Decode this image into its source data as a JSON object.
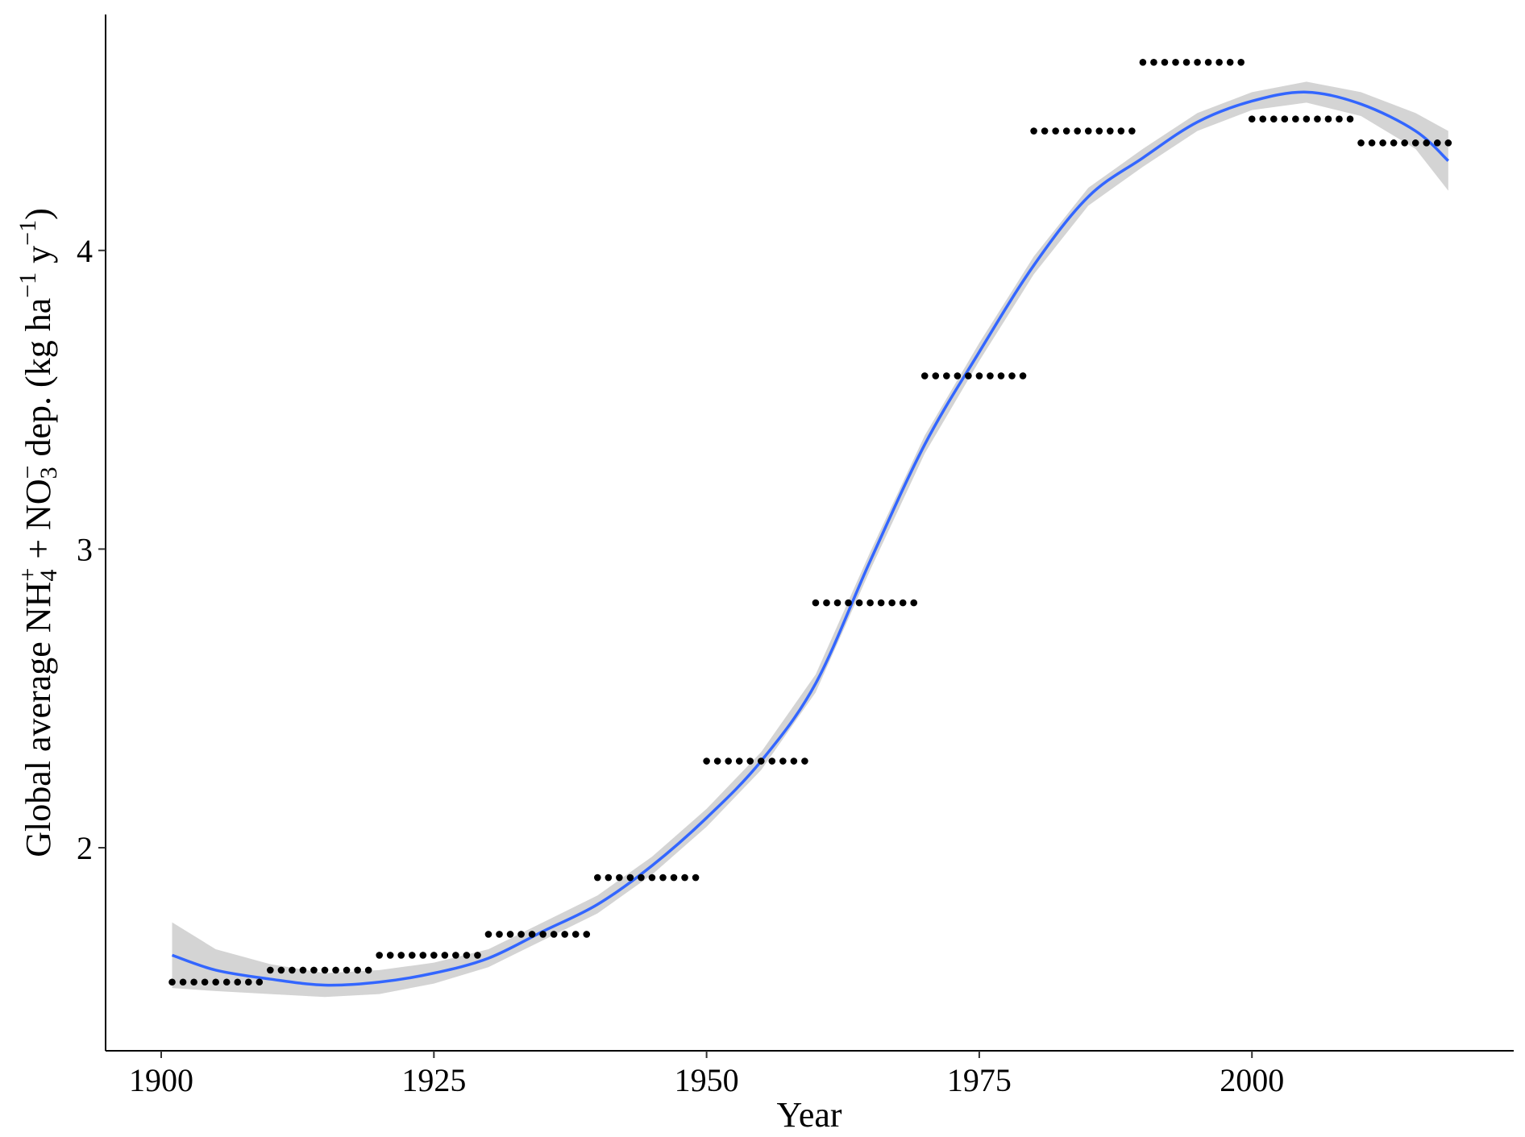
{
  "chart_data": {
    "type": "scatter",
    "x_label": "Year",
    "y_label_parts": [
      {
        "text": "Global average NH"
      },
      {
        "text": "4",
        "shift": "sub"
      },
      {
        "text": "+",
        "shift": "sup",
        "stack": true
      },
      {
        "text": " + NO"
      },
      {
        "text": "3",
        "shift": "sub"
      },
      {
        "text": "−",
        "shift": "sup",
        "stack": true
      },
      {
        "text": " dep. (kg ha"
      },
      {
        "text": "−1",
        "shift": "sup"
      },
      {
        "text": " y"
      },
      {
        "text": "−1",
        "shift": "sup"
      },
      {
        "text": ")"
      }
    ],
    "xlim": [
      1894.9,
      2024
    ],
    "ylim": [
      1.32,
      4.79
    ],
    "xticks": [
      1900,
      1925,
      1950,
      1975,
      2000
    ],
    "yticks": [
      2,
      3,
      4
    ],
    "color": "#000000",
    "x": [
      1901,
      1902,
      1903,
      1904,
      1905,
      1906,
      1907,
      1908,
      1909,
      1910,
      1911,
      1912,
      1913,
      1914,
      1915,
      1916,
      1917,
      1918,
      1919,
      1920,
      1921,
      1922,
      1923,
      1924,
      1925,
      1926,
      1927,
      1928,
      1929,
      1930,
      1931,
      1932,
      1933,
      1934,
      1935,
      1936,
      1937,
      1938,
      1939,
      1940,
      1941,
      1942,
      1943,
      1944,
      1945,
      1946,
      1947,
      1948,
      1949,
      1950,
      1951,
      1952,
      1953,
      1954,
      1955,
      1956,
      1957,
      1958,
      1959,
      1960,
      1961,
      1962,
      1963,
      1964,
      1965,
      1966,
      1967,
      1968,
      1969,
      1970,
      1971,
      1972,
      1973,
      1974,
      1975,
      1976,
      1977,
      1978,
      1979,
      1980,
      1981,
      1982,
      1983,
      1984,
      1985,
      1986,
      1987,
      1988,
      1989,
      1990,
      1991,
      1992,
      1993,
      1994,
      1995,
      1996,
      1997,
      1998,
      1999,
      2000,
      2001,
      2002,
      2003,
      2004,
      2005,
      2006,
      2007,
      2008,
      2009,
      2010,
      2011,
      2012,
      2013,
      2014,
      2015,
      2016,
      2017,
      2018
    ],
    "values": [
      1.55,
      1.55,
      1.55,
      1.55,
      1.55,
      1.55,
      1.55,
      1.55,
      1.55,
      1.59,
      1.59,
      1.59,
      1.59,
      1.59,
      1.59,
      1.59,
      1.59,
      1.59,
      1.59,
      1.64,
      1.64,
      1.64,
      1.64,
      1.64,
      1.64,
      1.64,
      1.64,
      1.64,
      1.64,
      1.71,
      1.71,
      1.71,
      1.71,
      1.71,
      1.71,
      1.71,
      1.71,
      1.71,
      1.71,
      1.9,
      1.9,
      1.9,
      1.9,
      1.9,
      1.9,
      1.9,
      1.9,
      1.9,
      1.9,
      2.29,
      2.29,
      2.29,
      2.29,
      2.29,
      2.29,
      2.29,
      2.29,
      2.29,
      2.29,
      2.82,
      2.82,
      2.82,
      2.82,
      2.82,
      2.82,
      2.82,
      2.82,
      2.82,
      2.82,
      3.58,
      3.58,
      3.58,
      3.58,
      3.58,
      3.58,
      3.58,
      3.58,
      3.58,
      3.58,
      4.4,
      4.4,
      4.4,
      4.4,
      4.4,
      4.4,
      4.4,
      4.4,
      4.4,
      4.4,
      4.63,
      4.63,
      4.63,
      4.63,
      4.63,
      4.63,
      4.63,
      4.63,
      4.63,
      4.63,
      4.44,
      4.44,
      4.44,
      4.44,
      4.44,
      4.44,
      4.44,
      4.44,
      4.44,
      4.44,
      4.36,
      4.36,
      4.36,
      4.36,
      4.36,
      4.36,
      4.36,
      4.36,
      4.36
    ],
    "smooth": {
      "color": "#3366ff",
      "band_color": "#d4d4d4",
      "x": [
        1901,
        1905,
        1910,
        1915,
        1920,
        1925,
        1930,
        1935,
        1940,
        1945,
        1950,
        1955,
        1960,
        1965,
        1970,
        1975,
        1980,
        1985,
        1990,
        1995,
        2000,
        2005,
        2010,
        2015,
        2018
      ],
      "values": [
        1.64,
        1.59,
        1.56,
        1.54,
        1.55,
        1.58,
        1.63,
        1.72,
        1.81,
        1.94,
        2.1,
        2.29,
        2.55,
        2.96,
        3.35,
        3.66,
        3.95,
        4.18,
        4.31,
        4.43,
        4.5,
        4.53,
        4.49,
        4.4,
        4.3
      ],
      "lower": [
        1.53,
        1.52,
        1.51,
        1.5,
        1.51,
        1.545,
        1.6,
        1.69,
        1.78,
        1.91,
        2.07,
        2.26,
        2.52,
        2.93,
        3.32,
        3.63,
        3.92,
        4.15,
        4.28,
        4.4,
        4.47,
        4.495,
        4.45,
        4.34,
        4.2
      ],
      "upper": [
        1.75,
        1.66,
        1.61,
        1.58,
        1.59,
        1.615,
        1.66,
        1.75,
        1.84,
        1.97,
        2.13,
        2.32,
        2.58,
        2.99,
        3.38,
        3.69,
        3.98,
        4.21,
        4.34,
        4.46,
        4.53,
        4.565,
        4.53,
        4.46,
        4.4
      ]
    }
  }
}
